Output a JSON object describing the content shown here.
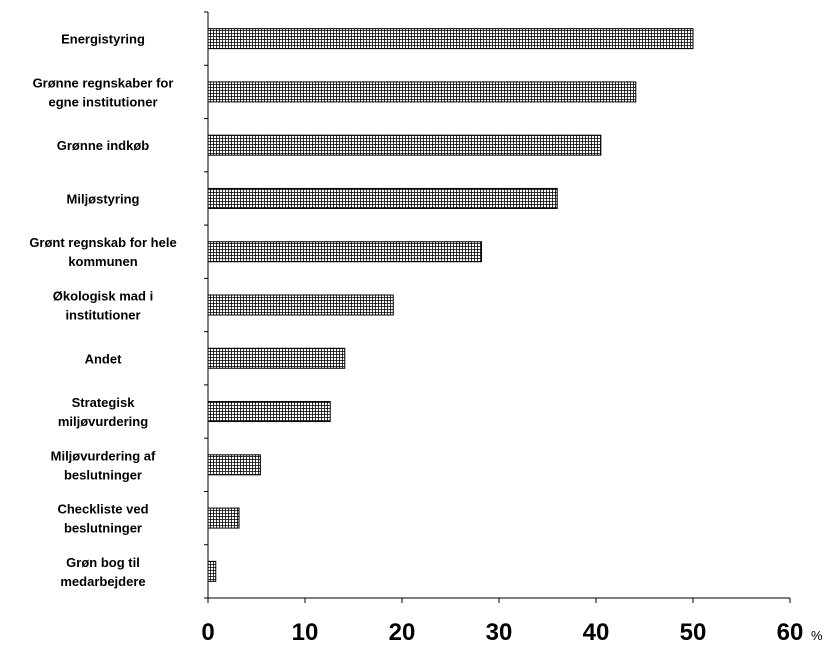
{
  "chart_data": {
    "type": "bar",
    "orientation": "horizontal",
    "categories": [
      [
        "Energistyring"
      ],
      [
        "Grønne regnskaber for",
        "egne institutioner"
      ],
      [
        "Grønne indkøb"
      ],
      [
        "Miljøstyring"
      ],
      [
        "Grønt regnskab for hele",
        "kommunen"
      ],
      [
        "Økologisk mad i",
        "institutioner"
      ],
      [
        "Andet"
      ],
      [
        "Strategisk",
        "miljøvurdering"
      ],
      [
        "Miljøvurdering af",
        "beslutninger"
      ],
      [
        "Checkliste ved",
        "beslutninger"
      ],
      [
        "Grøn bog til",
        "medarbejdere"
      ]
    ],
    "values": [
      50,
      44.1,
      40.5,
      36,
      28.2,
      19.1,
      14.1,
      12.6,
      5.4,
      3.2,
      0.8
    ],
    "xlim": [
      0,
      60
    ],
    "xticks": [
      "0",
      "10",
      "20",
      "30",
      "40",
      "50",
      "60"
    ],
    "x_unit": "%",
    "grid": false,
    "bar_fill": "crosshatch"
  }
}
